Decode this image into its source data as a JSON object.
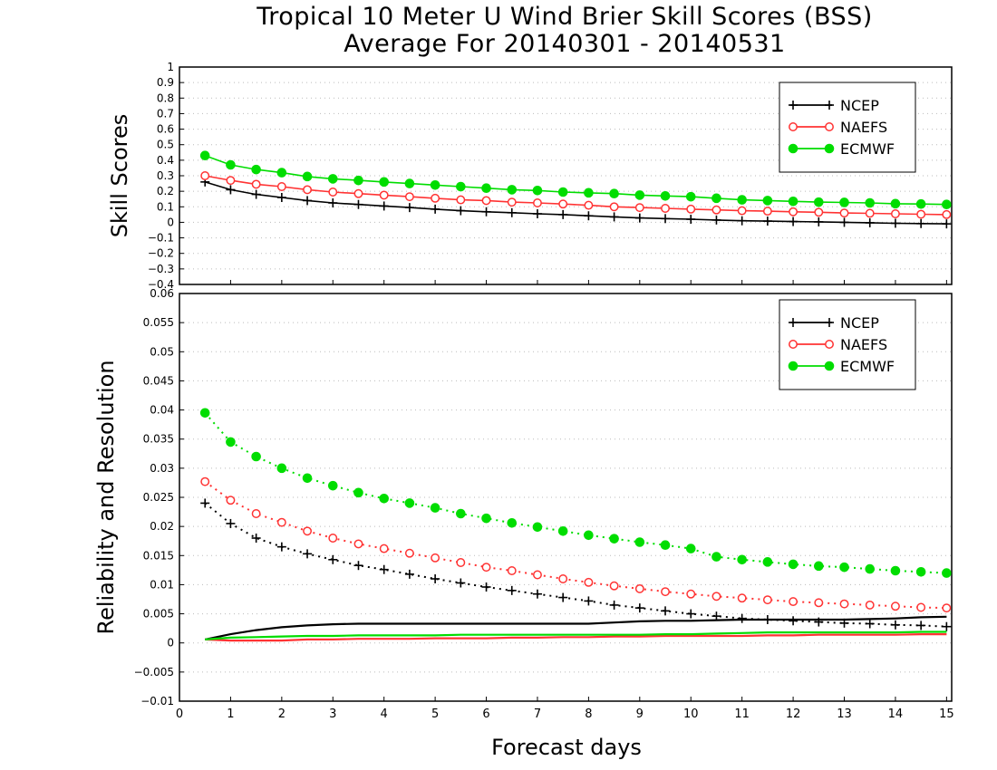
{
  "title_line1": "Tropical 10 Meter U Wind Brier Skill Scores (BSS)",
  "title_line2": "Average For 20140301 - 20140531",
  "xlabel": "Forecast days",
  "chart_data": [
    {
      "type": "line",
      "ylabel": "Skill Scores",
      "xlim": [
        0,
        15.1
      ],
      "ylim": [
        -0.4,
        1
      ],
      "grid": true,
      "legend_position": "top-right",
      "x_ticks": [
        0,
        1,
        2,
        3,
        4,
        5,
        6,
        7,
        8,
        9,
        10,
        11,
        12,
        13,
        14,
        15
      ],
      "y_ticks": [
        "1",
        "0.9",
        "0.8",
        "0.7",
        "0.6",
        "0.5",
        "0.4",
        "0.3",
        "0.2",
        "0.1",
        "0",
        "−0.1",
        "−0.2",
        "−0.3",
        "−0.4"
      ],
      "x": [
        0.5,
        1,
        1.5,
        2,
        2.5,
        3,
        3.5,
        4,
        4.5,
        5,
        5.5,
        6,
        6.5,
        7,
        7.5,
        8,
        8.5,
        9,
        9.5,
        10,
        10.5,
        11,
        11.5,
        12,
        12.5,
        13,
        13.5,
        14,
        14.5,
        15
      ],
      "series": [
        {
          "name": "NCEP",
          "color": "#000000",
          "marker": "plus",
          "values": [
            0.26,
            0.21,
            0.18,
            0.16,
            0.14,
            0.125,
            0.115,
            0.105,
            0.095,
            0.085,
            0.075,
            0.068,
            0.062,
            0.055,
            0.05,
            0.042,
            0.035,
            0.028,
            0.024,
            0.02,
            0.015,
            0.01,
            0.008,
            0.005,
            0.003,
            0.0,
            -0.003,
            -0.006,
            -0.008,
            -0.01
          ]
        },
        {
          "name": "NAEFS",
          "color": "#ff3333",
          "marker": "open-circle",
          "values": [
            0.3,
            0.27,
            0.245,
            0.23,
            0.21,
            0.195,
            0.185,
            0.175,
            0.165,
            0.155,
            0.145,
            0.14,
            0.13,
            0.125,
            0.118,
            0.11,
            0.1,
            0.095,
            0.09,
            0.085,
            0.08,
            0.075,
            0.072,
            0.068,
            0.065,
            0.06,
            0.058,
            0.055,
            0.052,
            0.05
          ]
        },
        {
          "name": "ECMWF",
          "color": "#00dd00",
          "marker": "filled-circle",
          "values": [
            0.43,
            0.37,
            0.34,
            0.32,
            0.295,
            0.28,
            0.27,
            0.26,
            0.25,
            0.24,
            0.23,
            0.22,
            0.21,
            0.205,
            0.195,
            0.19,
            0.185,
            0.175,
            0.17,
            0.165,
            0.155,
            0.145,
            0.14,
            0.135,
            0.13,
            0.128,
            0.125,
            0.12,
            0.118,
            0.115
          ]
        }
      ]
    },
    {
      "type": "line",
      "ylabel": "Reliability and Resolution",
      "xlim": [
        0,
        15.1
      ],
      "ylim": [
        -0.01,
        0.06
      ],
      "grid": true,
      "legend_position": "top-right",
      "x_ticks": [
        0,
        1,
        2,
        3,
        4,
        5,
        6,
        7,
        8,
        9,
        10,
        11,
        12,
        13,
        14,
        15
      ],
      "y_ticks": [
        "0.06",
        "0.055",
        "0.05",
        "0.045",
        "0.04",
        "0.035",
        "0.03",
        "0.025",
        "0.02",
        "0.015",
        "0.01",
        "0.005",
        "0",
        "−0.005",
        "−0.01"
      ],
      "x": [
        0.5,
        1,
        1.5,
        2,
        2.5,
        3,
        3.5,
        4,
        4.5,
        5,
        5.5,
        6,
        6.5,
        7,
        7.5,
        8,
        8.5,
        9,
        9.5,
        10,
        10.5,
        11,
        11.5,
        12,
        12.5,
        13,
        13.5,
        14,
        14.5,
        15
      ],
      "series": [
        {
          "name": "NCEP",
          "color": "#000000",
          "marker": "plus",
          "line": "dotted",
          "values": [
            0.024,
            0.0205,
            0.018,
            0.0165,
            0.0153,
            0.0143,
            0.0133,
            0.0126,
            0.0118,
            0.011,
            0.0103,
            0.0096,
            0.009,
            0.0084,
            0.0078,
            0.0072,
            0.0065,
            0.006,
            0.0055,
            0.005,
            0.0046,
            0.0042,
            0.004,
            0.0038,
            0.0036,
            0.0034,
            0.0033,
            0.0031,
            0.003,
            0.0028
          ]
        },
        {
          "name": "NAEFS",
          "color": "#ff3333",
          "marker": "open-circle",
          "line": "dotted",
          "values": [
            0.0277,
            0.0245,
            0.0222,
            0.0207,
            0.0192,
            0.018,
            0.017,
            0.0162,
            0.0154,
            0.0146,
            0.0138,
            0.013,
            0.0124,
            0.0117,
            0.011,
            0.0104,
            0.0098,
            0.0093,
            0.0088,
            0.0084,
            0.008,
            0.0077,
            0.0074,
            0.0071,
            0.0069,
            0.0067,
            0.0065,
            0.0063,
            0.0061,
            0.006
          ]
        },
        {
          "name": "ECMWF",
          "color": "#00dd00",
          "marker": "filled-circle",
          "line": "dotted",
          "values": [
            0.0395,
            0.0345,
            0.032,
            0.03,
            0.0283,
            0.027,
            0.0258,
            0.0248,
            0.024,
            0.0232,
            0.0222,
            0.0214,
            0.0206,
            0.0199,
            0.0192,
            0.0185,
            0.0179,
            0.0173,
            0.0168,
            0.0162,
            0.0148,
            0.0143,
            0.0139,
            0.0135,
            0.0132,
            0.013,
            0.0127,
            0.0124,
            0.0122,
            0.012
          ]
        },
        {
          "name": "NCEP",
          "color": "#000000",
          "marker": "none",
          "line": "solid",
          "values": [
            0.0006,
            0.0015,
            0.0022,
            0.0027,
            0.003,
            0.0032,
            0.0033,
            0.0033,
            0.0033,
            0.0033,
            0.0033,
            0.0033,
            0.0033,
            0.0033,
            0.0033,
            0.0033,
            0.0035,
            0.0037,
            0.0038,
            0.0038,
            0.0039,
            0.004,
            0.004,
            0.004,
            0.004,
            0.004,
            0.0041,
            0.0042,
            0.0044,
            0.0045
          ]
        },
        {
          "name": "NAEFS",
          "color": "#ff3333",
          "marker": "none",
          "line": "solid",
          "values": [
            0.0006,
            0.0004,
            0.0004,
            0.0004,
            0.0006,
            0.0006,
            0.0007,
            0.0007,
            0.0007,
            0.0008,
            0.0008,
            0.0008,
            0.0009,
            0.0009,
            0.001,
            0.001,
            0.0011,
            0.0011,
            0.0012,
            0.0012,
            0.0012,
            0.0012,
            0.0013,
            0.0013,
            0.0014,
            0.0014,
            0.0014,
            0.0014,
            0.0015,
            0.0015
          ]
        },
        {
          "name": "ECMWF",
          "color": "#00dd00",
          "marker": "none",
          "line": "solid",
          "values": [
            0.0006,
            0.0009,
            0.001,
            0.0011,
            0.0012,
            0.0012,
            0.0013,
            0.0013,
            0.0013,
            0.0013,
            0.0014,
            0.0014,
            0.0014,
            0.0014,
            0.0014,
            0.0014,
            0.0014,
            0.0014,
            0.0015,
            0.0015,
            0.0016,
            0.0017,
            0.0018,
            0.0018,
            0.0018,
            0.0018,
            0.0018,
            0.0018,
            0.0019,
            0.0019
          ]
        }
      ]
    }
  ]
}
